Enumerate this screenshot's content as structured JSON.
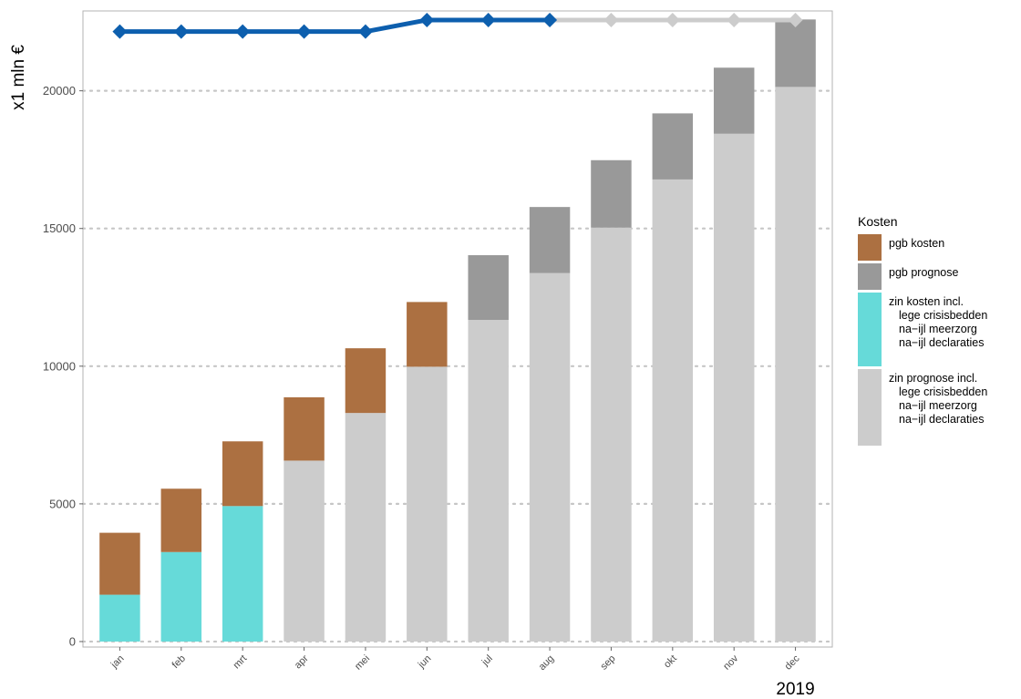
{
  "chart_data": {
    "type": "bar",
    "ylabel": "x1 mln €",
    "xlabel": "2019",
    "ylim": [
      -200,
      22900
    ],
    "yticks": [
      0,
      5000,
      10000,
      15000,
      20000
    ],
    "grid": "horizontal-dotted",
    "legend_position": "right",
    "legend_title": "Kosten",
    "categories": [
      "jan",
      "feb",
      "mrt",
      "apr",
      "mei",
      "jun",
      "jul",
      "aug",
      "sep",
      "okt",
      "nov",
      "dec"
    ],
    "series": [
      {
        "name": "pgb kosten",
        "color": "#ac7041",
        "values": [
          2250,
          2300,
          2350,
          2300,
          2350,
          2350,
          null,
          null,
          null,
          null,
          null,
          null
        ]
      },
      {
        "name": "pgb prognose",
        "color": "#999999",
        "values": [
          null,
          null,
          null,
          null,
          null,
          null,
          2350,
          2400,
          2450,
          2400,
          2400,
          2450
        ]
      },
      {
        "name": "zin kosten incl.\nlege crisisbedden\nna−ijl meerzorg\nna−ijl declaraties",
        "color": "#66dad9",
        "values": [
          1700,
          3250,
          4920,
          null,
          null,
          null,
          null,
          null,
          null,
          null,
          null,
          null
        ]
      },
      {
        "name": "zin prognose incl.\nlege crisisbedden\nna−ijl meerzorg\nna−ijl declaraties",
        "color": "#cccccc",
        "values": [
          null,
          null,
          null,
          6570,
          8300,
          9980,
          11680,
          13380,
          15030,
          16780,
          18440,
          20140
        ]
      }
    ],
    "stack_order": [
      "zin kosten incl.\nlege crisisbedden\nna−ijl meerzorg\nna−ijl declaraties",
      "zin prognose incl.\nlege crisisbedden\nna−ijl meerzorg\nna−ijl declaraties",
      "pgb kosten",
      "pgb prognose"
    ],
    "lines": [
      {
        "kind": "realised",
        "color": "#0d5fae",
        "values": [
          22150,
          22150,
          22150,
          22150,
          22150,
          22570,
          22570,
          22570,
          null,
          null,
          null,
          null
        ]
      },
      {
        "kind": "forecast",
        "color": "#cccccc",
        "values": [
          null,
          null,
          null,
          null,
          null,
          null,
          null,
          22570,
          22570,
          22570,
          22570,
          22570
        ]
      }
    ]
  }
}
